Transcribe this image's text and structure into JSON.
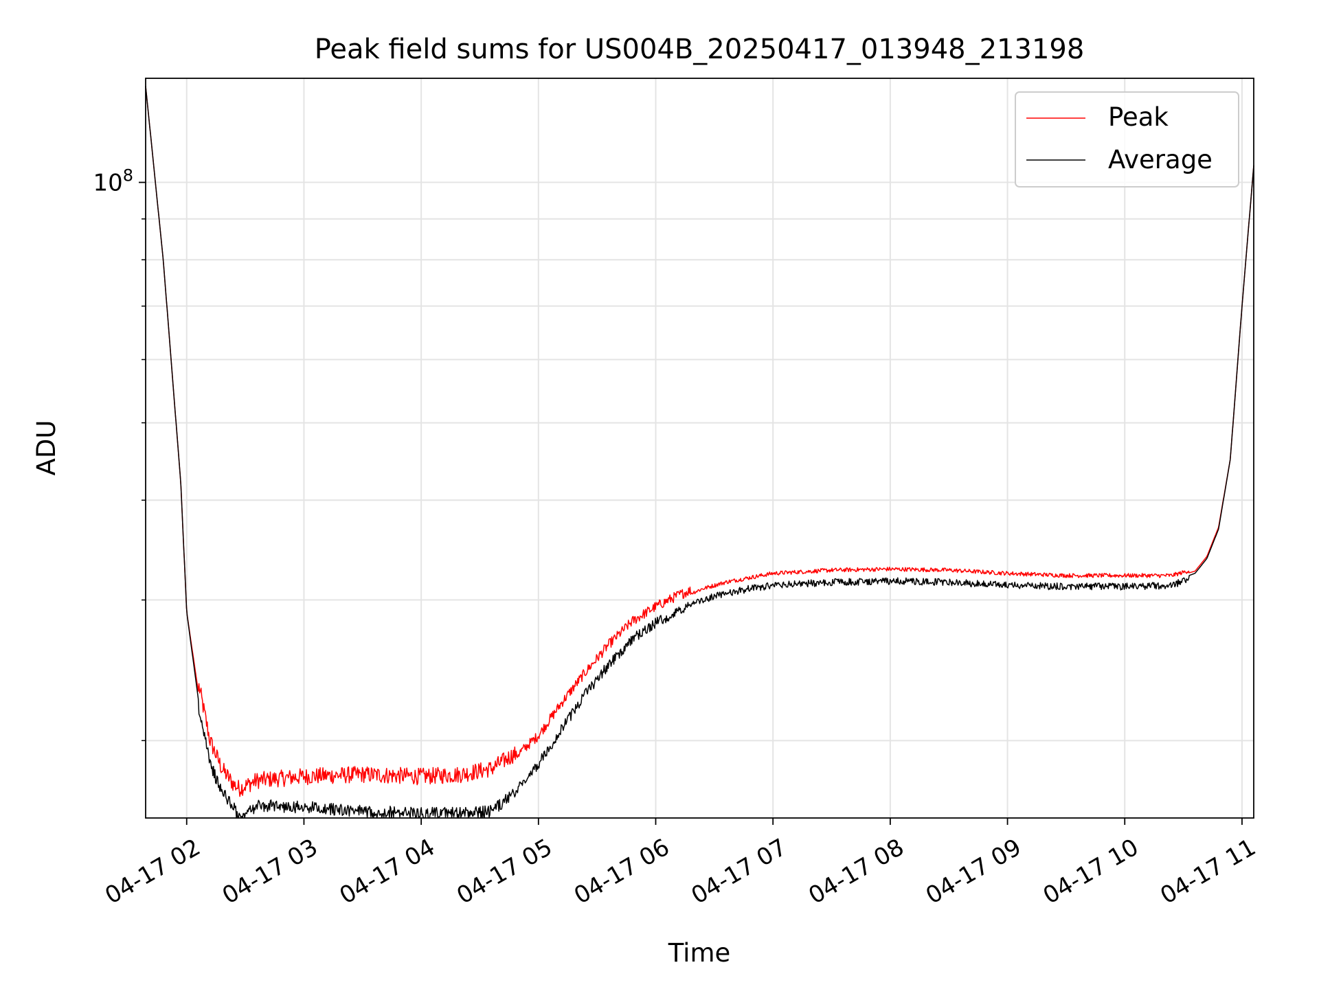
{
  "chart_data": {
    "type": "line",
    "title": "Peak field sums for US004B_20250417_013948_213198",
    "xlabel": "Time",
    "ylabel": "ADU",
    "y_scale": "log",
    "grid": true,
    "legend_position": "top-right",
    "x_unit": "hours",
    "xlim": [
      "2025-04-17 01:39",
      "2025-04-17 11:06"
    ],
    "ylim": [
      16000000,
      135000000
    ],
    "x_ticks": [
      {
        "t": "2025-04-17 02:00",
        "label": "04-17 02"
      },
      {
        "t": "2025-04-17 03:00",
        "label": "04-17 03"
      },
      {
        "t": "2025-04-17 04:00",
        "label": "04-17 04"
      },
      {
        "t": "2025-04-17 05:00",
        "label": "04-17 05"
      },
      {
        "t": "2025-04-17 06:00",
        "label": "04-17 06"
      },
      {
        "t": "2025-04-17 07:00",
        "label": "04-17 07"
      },
      {
        "t": "2025-04-17 08:00",
        "label": "04-17 08"
      },
      {
        "t": "2025-04-17 09:00",
        "label": "04-17 09"
      },
      {
        "t": "2025-04-17 10:00",
        "label": "04-17 10"
      },
      {
        "t": "2025-04-17 11:00",
        "label": "04-17 11"
      }
    ],
    "y_major_ticks": [
      {
        "value": 100000000,
        "base": "10",
        "exp": "8"
      }
    ],
    "y_minor_ticks": [
      20000000,
      30000000,
      40000000,
      50000000,
      60000000,
      70000000,
      80000000,
      90000000
    ],
    "x": [
      "2025-04-17 01:39",
      "2025-04-17 01:48",
      "2025-04-17 01:57",
      "2025-04-17 02:00",
      "2025-04-17 02:06",
      "2025-04-17 02:12",
      "2025-04-17 02:18",
      "2025-04-17 02:24",
      "2025-04-17 02:27",
      "2025-04-17 02:36",
      "2025-04-17 03:00",
      "2025-04-17 03:30",
      "2025-04-17 04:00",
      "2025-04-17 04:20",
      "2025-04-17 04:36",
      "2025-04-17 04:48",
      "2025-04-17 05:00",
      "2025-04-17 05:12",
      "2025-04-17 05:24",
      "2025-04-17 05:36",
      "2025-04-17 05:48",
      "2025-04-17 06:00",
      "2025-04-17 06:12",
      "2025-04-17 06:24",
      "2025-04-17 06:36",
      "2025-04-17 06:48",
      "2025-04-17 07:00",
      "2025-04-17 07:30",
      "2025-04-17 08:00",
      "2025-04-17 08:30",
      "2025-04-17 09:00",
      "2025-04-17 09:30",
      "2025-04-17 10:00",
      "2025-04-17 10:24",
      "2025-04-17 10:36",
      "2025-04-17 10:42",
      "2025-04-17 10:48",
      "2025-04-17 10:54",
      "2025-04-17 11:00",
      "2025-04-17 11:06"
    ],
    "series": [
      {
        "name": "Peak",
        "color": "#ff0000",
        "values": [
          132000000,
          80000000,
          42000000,
          29000000,
          23000000,
          19500000,
          18000000,
          17200000,
          17000000,
          17400000,
          17600000,
          17700000,
          17600000,
          17700000,
          18000000,
          18800000,
          20000000,
          22000000,
          24000000,
          26000000,
          27800000,
          29000000,
          30000000,
          30800000,
          31400000,
          31800000,
          32200000,
          32500000,
          32600000,
          32500000,
          32200000,
          32000000,
          32000000,
          32000000,
          32600000,
          34000000,
          37000000,
          45000000,
          70000000,
          105000000
        ]
      },
      {
        "name": "Average",
        "color": "#000000",
        "values": [
          132000000,
          80000000,
          42000000,
          29000000,
          22500000,
          19000000,
          17600000,
          16800000,
          16200000,
          16900000,
          16800000,
          16600000,
          16500000,
          16500000,
          16600000,
          17500000,
          19000000,
          21000000,
          23200000,
          25300000,
          27200000,
          28500000,
          29500000,
          30300000,
          30900000,
          31300000,
          31600000,
          31900000,
          32000000,
          31900000,
          31600000,
          31500000,
          31500000,
          31600000,
          32400000,
          33800000,
          36800000,
          45000000,
          70000000,
          105000000
        ]
      }
    ]
  }
}
